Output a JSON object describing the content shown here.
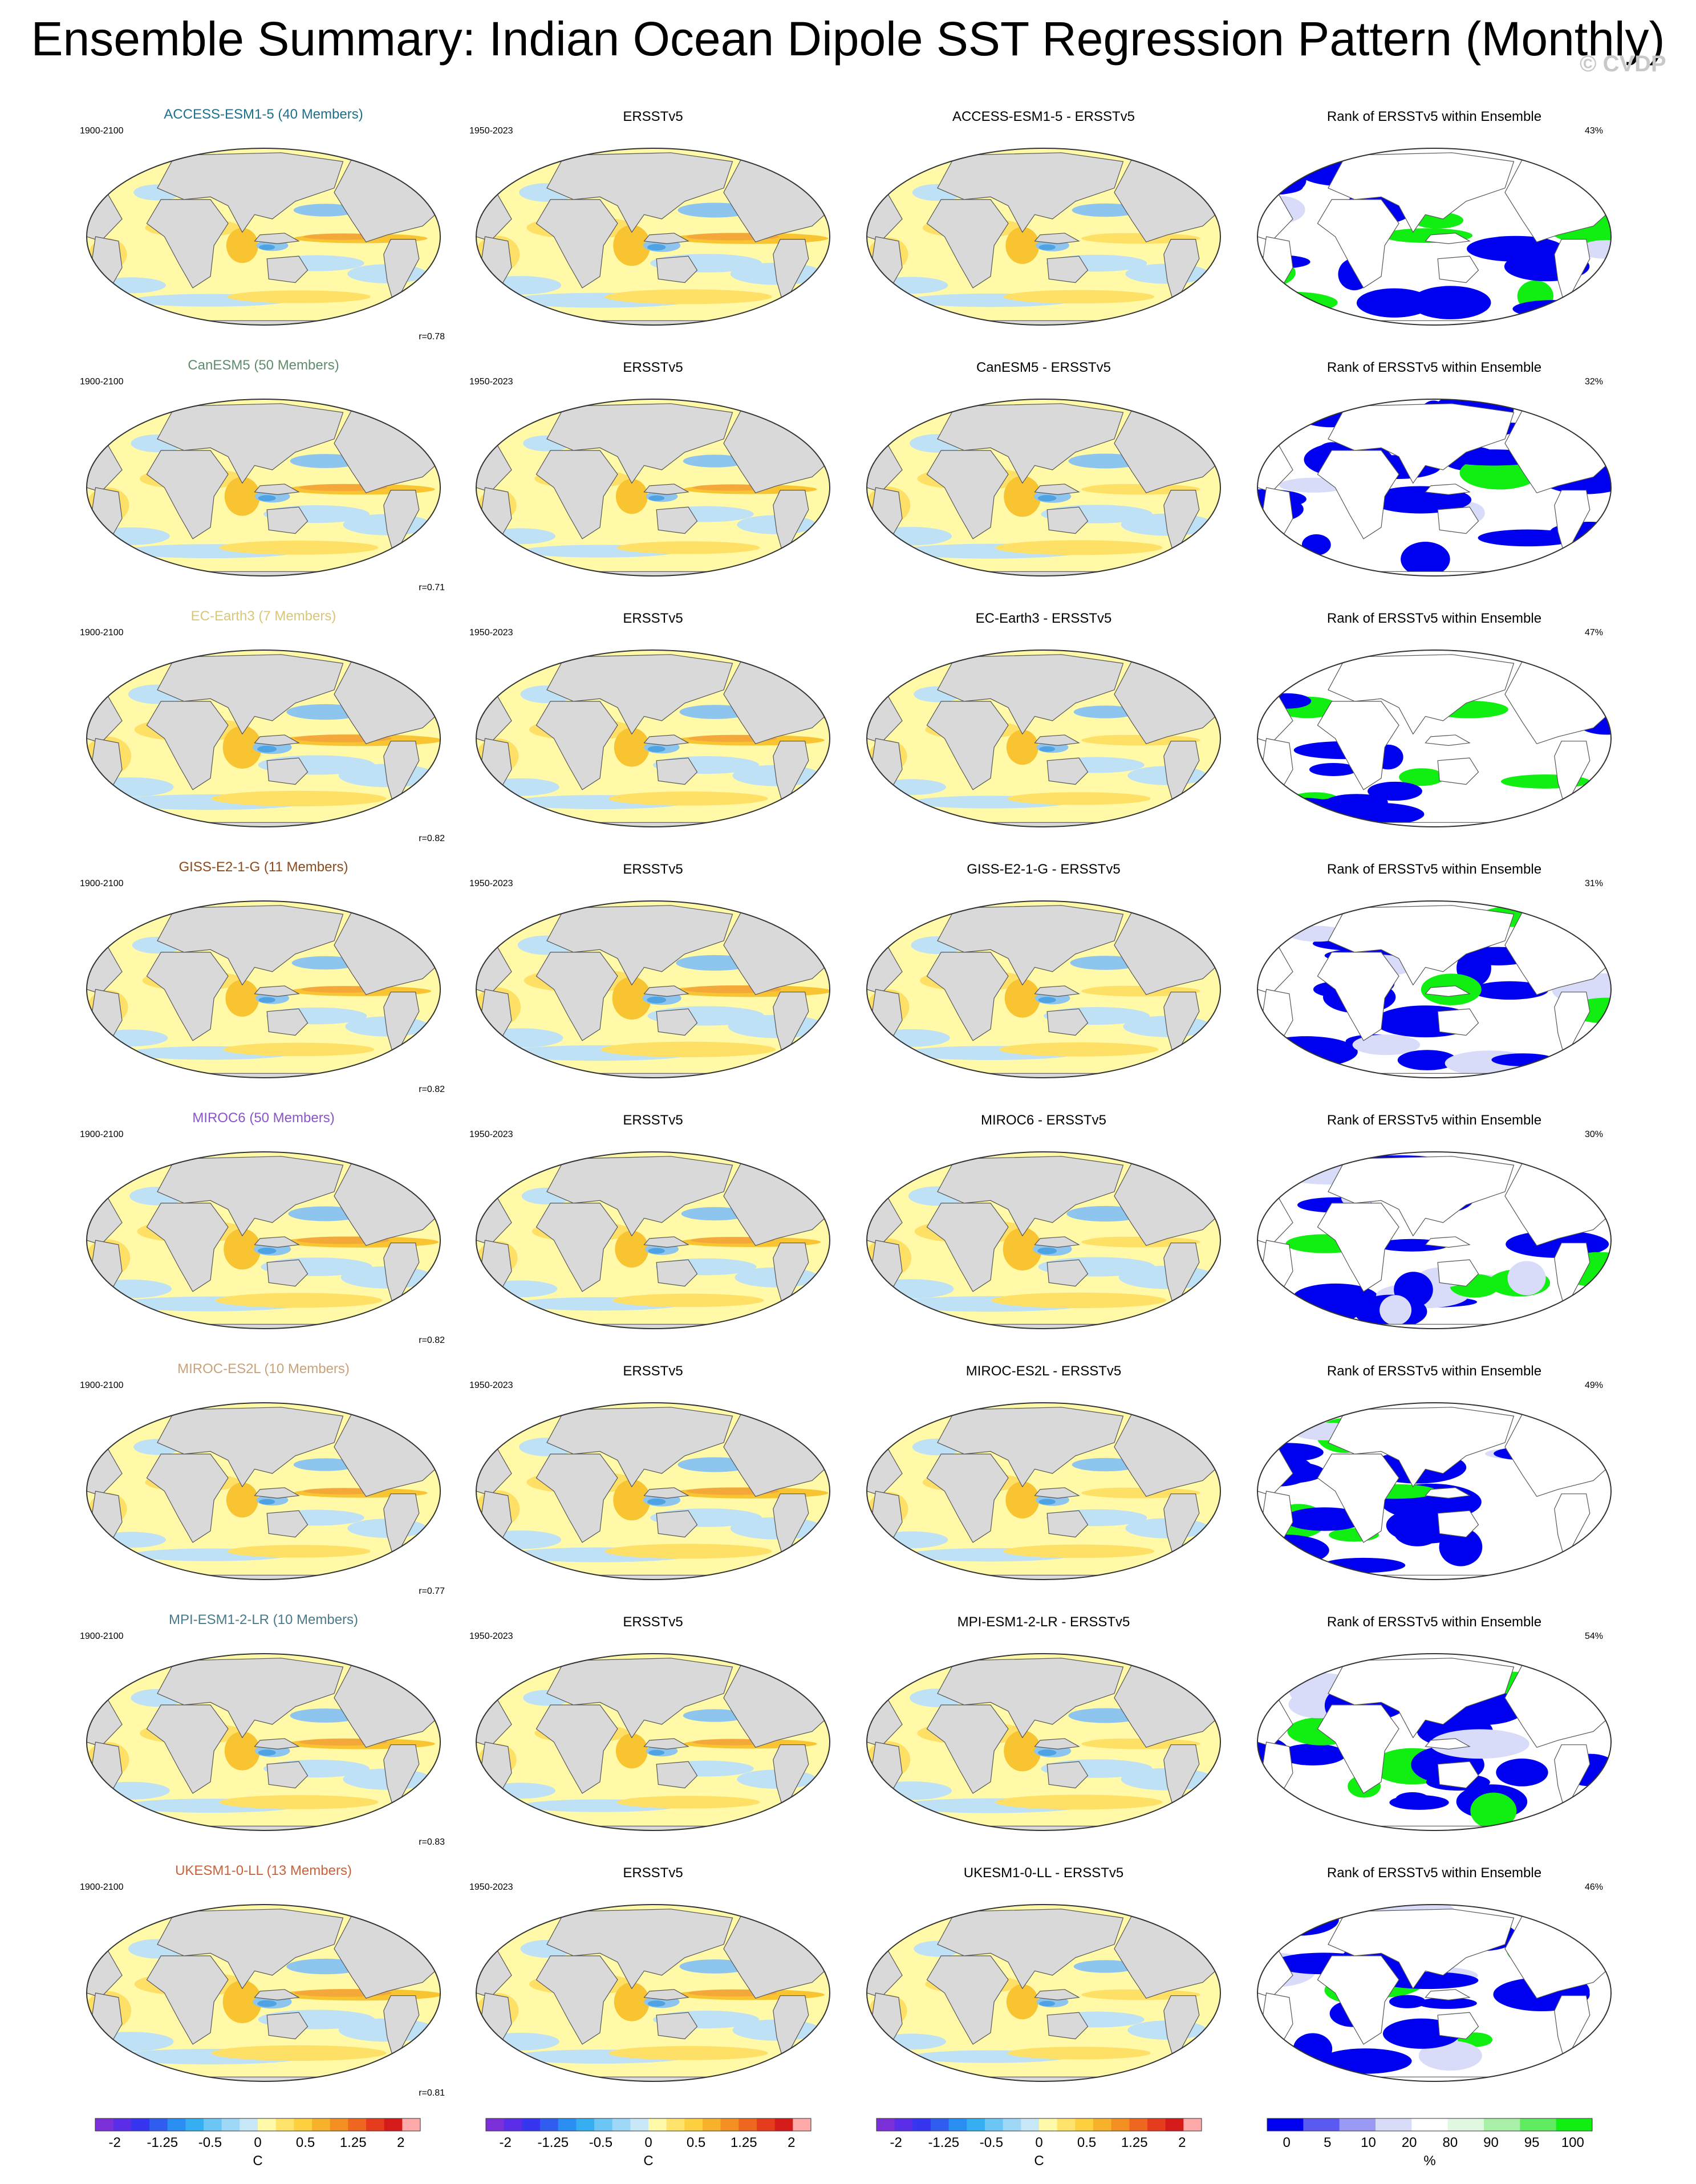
{
  "title": "Ensemble Summary: Indian Ocean Dipole SST Regression Pattern (Monthly)",
  "watermark": "© CVDP",
  "colors": {
    "land": "#d9d9d9",
    "ocean_neutral": "#fff9a8",
    "pos_light": "#ffe066",
    "pos_mid": "#f8c431",
    "neg_light": "#bfe1f5",
    "neg_mid": "#8ec5ee",
    "neg_dark": "#4fa3e3",
    "rank_blue": "#0000f0",
    "rank_green": "#11ee11",
    "rank_pale": "#d8dcf8"
  },
  "columns": [
    "model",
    "obs",
    "diff",
    "rank"
  ],
  "rows": [
    {
      "model_title": "ACCESS-ESM1-5 (40 Members)",
      "model_color": "#1f6f8b",
      "model_period": "1900-2100",
      "obs_title": "ERSSTv5",
      "obs_period": "1950-2023",
      "diff_title": "ACCESS-ESM1-5 - ERSSTv5",
      "rank_title": "Rank of ERSSTv5 within Ensemble",
      "rank_pct": "43%",
      "r": "r=0.78"
    },
    {
      "model_title": "CanESM5 (50 Members)",
      "model_color": "#5f8c6a",
      "model_period": "1900-2100",
      "obs_title": "ERSSTv5",
      "obs_period": "1950-2023",
      "diff_title": "CanESM5 - ERSSTv5",
      "rank_title": "Rank of ERSSTv5 within Ensemble",
      "rank_pct": "32%",
      "r": "r=0.71"
    },
    {
      "model_title": "EC-Earth3 (7 Members)",
      "model_color": "#d8c77a",
      "model_period": "1900-2100",
      "obs_title": "ERSSTv5",
      "obs_period": "1950-2023",
      "diff_title": "EC-Earth3 - ERSSTv5",
      "rank_title": "Rank of ERSSTv5 within Ensemble",
      "rank_pct": "47%",
      "r": "r=0.82"
    },
    {
      "model_title": "GISS-E2-1-G (11 Members)",
      "model_color": "#8b4a1c",
      "model_period": "1900-2100",
      "obs_title": "ERSSTv5",
      "obs_period": "1950-2023",
      "diff_title": "GISS-E2-1-G - ERSSTv5",
      "rank_title": "Rank of ERSSTv5 within Ensemble",
      "rank_pct": "31%",
      "r": "r=0.82"
    },
    {
      "model_title": "MIROC6 (50 Members)",
      "model_color": "#8a55c8",
      "model_period": "1900-2100",
      "obs_title": "ERSSTv5",
      "obs_period": "1950-2023",
      "diff_title": "MIROC6 - ERSSTv5",
      "rank_title": "Rank of ERSSTv5 within Ensemble",
      "rank_pct": "30%",
      "r": "r=0.82"
    },
    {
      "model_title": "MIROC-ES2L (10 Members)",
      "model_color": "#c9a27a",
      "model_period": "1900-2100",
      "obs_title": "ERSSTv5",
      "obs_period": "1950-2023",
      "diff_title": "MIROC-ES2L - ERSSTv5",
      "rank_title": "Rank of ERSSTv5 within Ensemble",
      "rank_pct": "49%",
      "r": "r=0.77"
    },
    {
      "model_title": "MPI-ESM1-2-LR (10 Members)",
      "model_color": "#4a7a8a",
      "model_period": "1900-2100",
      "obs_title": "ERSSTv5",
      "obs_period": "1950-2023",
      "diff_title": "MPI-ESM1-2-LR - ERSSTv5",
      "rank_title": "Rank of ERSSTv5 within Ensemble",
      "rank_pct": "54%",
      "r": "r=0.83"
    },
    {
      "model_title": "UKESM1-0-LL (13 Members)",
      "model_color": "#c8623a",
      "model_period": "1900-2100",
      "obs_title": "ERSSTv5",
      "obs_period": "1950-2023",
      "diff_title": "UKESM1-0-LL - ERSSTv5",
      "rank_title": "Rank of ERSSTv5 within Ensemble",
      "rank_pct": "46%",
      "r": "r=0.81"
    }
  ],
  "chart_data": {
    "type": "heatmap",
    "projection": "Robinson-like global maps, 8 rows x 4 columns",
    "sst_colorbar": {
      "unit": "C",
      "tick_labels": [
        "-2",
        "-1.25",
        "-0.5",
        "0",
        "0.5",
        "1.25",
        "2"
      ],
      "colors": [
        "#7b2fd9",
        "#5a2ee8",
        "#3636f0",
        "#2f5df0",
        "#2a8ef2",
        "#35aef2",
        "#6cc6f5",
        "#9fd8f7",
        "#c8e8f8",
        "#fffaaa",
        "#ffe36a",
        "#fdd040",
        "#f8b12a",
        "#f48f22",
        "#ef6620",
        "#e63c1e",
        "#d51a1a",
        "#ffaaaa"
      ]
    },
    "rank_colorbar": {
      "unit": "%",
      "tick_labels": [
        "0",
        "5",
        "10",
        "20",
        "80",
        "90",
        "95",
        "100"
      ],
      "colors": [
        "#0000f0",
        "#5a5af2",
        "#9a9af5",
        "#d8dcf8",
        "#ffffff",
        "#e0f8e0",
        "#a8f0a8",
        "#60ea60",
        "#11ee11"
      ]
    }
  }
}
